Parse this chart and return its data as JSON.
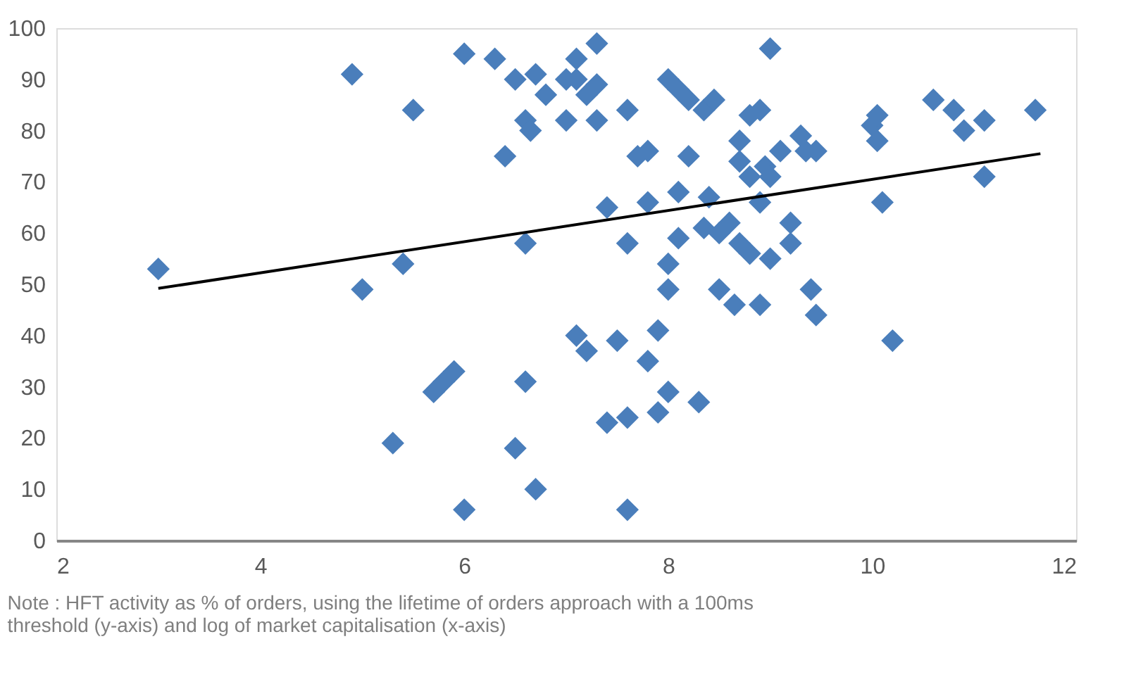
{
  "chart_data": {
    "type": "scatter",
    "marker": "diamond",
    "grid": false,
    "xlim": [
      2,
      12
    ],
    "xticks": [
      2,
      4,
      6,
      8,
      10,
      12
    ],
    "ylim": [
      0,
      100
    ],
    "yticks": [
      0,
      10,
      20,
      30,
      40,
      50,
      60,
      70,
      80,
      90,
      100
    ],
    "annotations": [
      "Note : HFT activity as % of orders, using the lifetime of orders approach with a 100ms threshold (y-axis) and log of market capitalisation (x-axis)"
    ],
    "series": [
      {
        "color": "#4a7ebb",
        "x": [
          3.0,
          4.9,
          5.5,
          5.0,
          5.4,
          5.3,
          5.7,
          5.8,
          5.9,
          6.0,
          6.0,
          6.3,
          6.4,
          6.5,
          6.5,
          6.6,
          6.65,
          6.6,
          6.6,
          6.7,
          6.7,
          6.8,
          7.0,
          7.0,
          7.1,
          7.1,
          7.2,
          7.1,
          7.2,
          7.3,
          7.3,
          7.3,
          7.4,
          7.5,
          7.4,
          7.6,
          7.6,
          7.6,
          7.6,
          7.7,
          7.8,
          7.8,
          7.8,
          7.9,
          7.9,
          8.0,
          8.0,
          8.0,
          8.1,
          8.1,
          8.0,
          8.1,
          8.2,
          8.2,
          8.3,
          8.35,
          8.35,
          8.45,
          8.4,
          8.5,
          8.6,
          8.5,
          8.65,
          8.7,
          8.7,
          8.8,
          8.7,
          8.8,
          8.8,
          8.9,
          8.9,
          8.9,
          9.0,
          8.95,
          9.0,
          9.0,
          9.1,
          9.2,
          9.2,
          9.3,
          9.35,
          9.4,
          9.45,
          9.45,
          10.0,
          10.05,
          10.05,
          10.1,
          10.2,
          10.6,
          10.8,
          10.9,
          11.1,
          11.1,
          11.6
        ],
        "values": [
          53,
          91,
          84,
          49,
          54,
          19,
          29,
          31,
          33,
          6,
          95,
          94,
          75,
          18,
          90,
          82,
          80,
          58,
          31,
          10,
          91,
          87,
          90,
          82,
          94,
          90,
          87,
          40,
          37,
          97,
          89,
          82,
          65,
          39,
          23,
          84,
          58,
          6,
          24,
          75,
          76,
          66,
          35,
          41,
          25,
          54,
          49,
          90,
          88,
          68,
          29,
          59,
          86,
          75,
          27,
          61,
          84,
          86,
          67,
          60,
          62,
          49,
          46,
          78,
          74,
          71,
          58,
          56,
          83,
          66,
          46,
          84,
          96,
          73,
          71,
          55,
          76,
          62,
          58,
          79,
          76,
          49,
          76,
          44,
          81,
          78,
          83,
          66,
          39,
          86,
          84,
          80,
          82,
          71,
          84
        ]
      },
      {
        "type": "line",
        "color": "#000000",
        "marker": "none",
        "x": [
          3.0,
          11.65
        ],
        "values": [
          49.2,
          75.5
        ]
      }
    ]
  }
}
